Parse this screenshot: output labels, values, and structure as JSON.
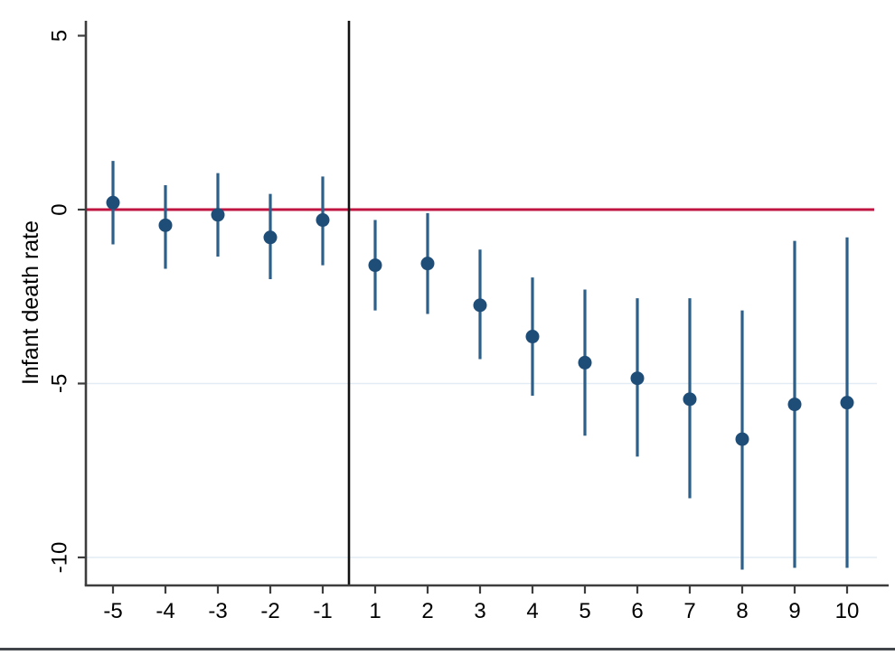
{
  "chart_data": {
    "type": "scatter",
    "subtype": "event-study-coefficient-plot-with-confidence-intervals",
    "title": "",
    "xlabel": "",
    "ylabel": "Infant death rate",
    "x": [
      -5,
      -4,
      -3,
      -2,
      -1,
      1,
      2,
      3,
      4,
      5,
      6,
      7,
      8,
      9,
      10
    ],
    "x_tick_labels": [
      "-5",
      "-4",
      "-3",
      "-2",
      "-1",
      "1",
      "2",
      "3",
      "4",
      "5",
      "6",
      "7",
      "8",
      "9",
      "10"
    ],
    "y_ticks": [
      {
        "value": 5,
        "label": "5"
      },
      {
        "value": 0,
        "label": "0"
      },
      {
        "value": -5,
        "label": "-5"
      },
      {
        "value": -10,
        "label": "-10"
      }
    ],
    "series": [
      {
        "name": "point-estimate",
        "values": [
          0.2,
          -0.45,
          -0.15,
          -0.8,
          -0.3,
          -1.6,
          -1.55,
          -2.75,
          -3.65,
          -4.4,
          -4.85,
          -5.45,
          -6.6,
          -5.6,
          -5.55
        ]
      },
      {
        "name": "ci-upper",
        "values": [
          1.4,
          0.7,
          1.05,
          0.45,
          0.95,
          -0.3,
          -0.1,
          -1.15,
          -1.95,
          -2.3,
          -2.55,
          -2.55,
          -2.9,
          -0.9,
          -0.8
        ]
      },
      {
        "name": "ci-lower",
        "values": [
          -1.0,
          -1.7,
          -1.35,
          -2.0,
          -1.6,
          -2.9,
          -3.0,
          -4.3,
          -5.35,
          -6.5,
          -7.1,
          -8.3,
          -10.35,
          -10.3,
          -10.3
        ]
      }
    ],
    "reference_lines": [
      {
        "orientation": "horizontal",
        "value": 0,
        "description": "zero line"
      },
      {
        "orientation": "vertical",
        "between_categories": [
          -1,
          1
        ],
        "description": "treatment-onset line"
      }
    ],
    "grid": {
      "y_values": [
        -5,
        -10
      ]
    },
    "axis_range": {
      "y": [
        -10.8,
        5.45
      ],
      "x": [
        -5.5,
        10.5
      ]
    },
    "legend": "none",
    "colors": {
      "marker": "#1e4d78",
      "ci": "#2c5f8a",
      "reference": "#c01441",
      "vline": "#111111",
      "axis": "#3d3d3d",
      "grid": "#e2ecf4",
      "text": "#000000",
      "window_border": "#42464b"
    }
  }
}
